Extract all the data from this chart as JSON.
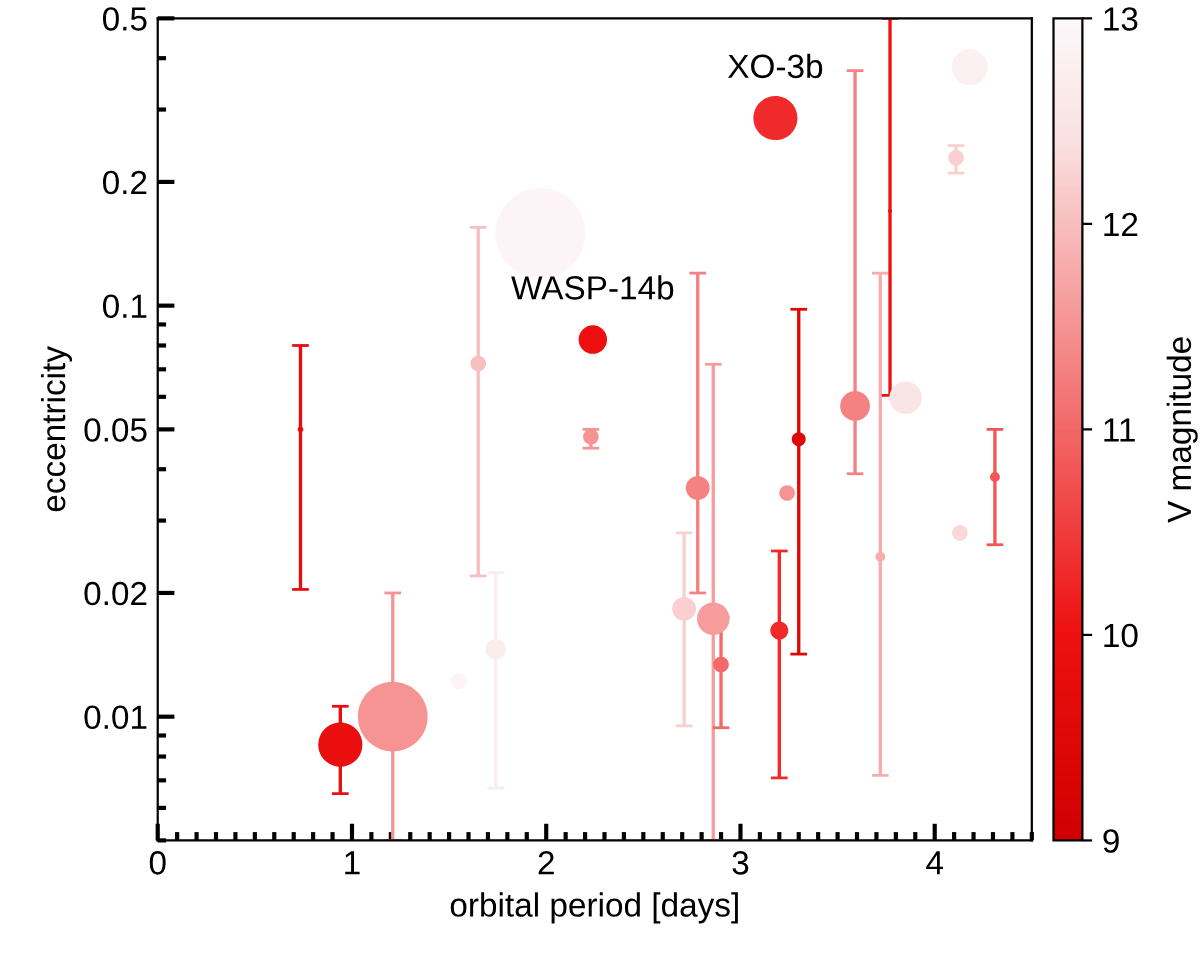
{
  "chart_data": {
    "type": "bubble",
    "xlabel": "orbital period [days]",
    "ylabel": "eccentricity",
    "clabel": "V magnitude",
    "xlim": [
      0,
      4.5
    ],
    "xticks": [
      0,
      1,
      2,
      3,
      4
    ],
    "ylim": [
      0.005,
      0.5
    ],
    "yticks": [
      0.01,
      0.02,
      0.05,
      0.1,
      0.2,
      0.5
    ],
    "log": "y",
    "clim": [
      9,
      13
    ],
    "cticks": [
      9,
      10,
      11,
      12,
      13
    ],
    "grid": false,
    "marker": "circle",
    "series": [
      {
        "x": [
          1.97,
          1.55,
          4.18,
          1.74,
          3.85,
          4.11,
          4.13,
          2.71,
          1.65,
          3.72,
          2.86,
          1.21,
          2.23,
          3.24,
          3.59,
          2.78,
          2.9,
          4.31,
          3.77,
          3.18,
          3.2,
          2.24,
          0.94,
          0.735,
          3.3
        ],
        "values": [
          0.15,
          0.0122,
          0.38,
          0.0146,
          0.0597,
          0.229,
          0.028,
          0.0183,
          0.0723,
          0.0245,
          0.0173,
          0.01,
          0.048,
          0.035,
          0.057,
          0.036,
          0.0134,
          0.0383,
          0.17,
          0.286,
          0.0162,
          0.0827,
          0.00855,
          0.05,
          0.0473
        ],
        "errors": [
          null,
          null,
          null,
          [
            0.0067,
            0.0224
          ],
          null,
          [
            0.21,
            0.245
          ],
          null,
          [
            0.0095,
            0.028
          ],
          [
            0.022,
            0.155
          ],
          [
            0.0072,
            0.12
          ],
          [
            0.005,
            0.072
          ],
          [
            0.005,
            0.02
          ],
          [
            0.045,
            0.05
          ],
          null,
          [
            0.039,
            0.373
          ],
          [
            0.02,
            0.12
          ],
          [
            0.0094,
            0.0175
          ],
          [
            0.0262,
            0.05
          ],
          [
            0.0605,
            0.5
          ],
          null,
          [
            0.0071,
            0.0253
          ],
          null,
          [
            0.0065,
            0.0106
          ],
          [
            0.0204,
            0.08
          ],
          [
            0.0142,
            0.098
          ]
        ],
        "sizes": [
          1,
          0.03,
          0.16,
          0.05,
          0.13,
          0.03,
          0.03,
          0.07,
          0.03,
          0.012,
          0.13,
          0.6,
          0.03,
          0.03,
          0.11,
          0.07,
          0.03,
          0.012,
          0.002,
          0.24,
          0.04,
          0.1,
          0.24,
          0.004,
          0.024
        ],
        "cvalues": [
          12.9,
          12.9,
          12.8,
          12.7,
          12.5,
          12.2,
          12.3,
          12.2,
          12.0,
          11.8,
          11.6,
          11.5,
          11.5,
          11.5,
          11.3,
          11.3,
          11.0,
          10.8,
          10.0,
          10.3,
          10.3,
          10.0,
          9.9,
          9.8,
          9.5
        ]
      }
    ],
    "annotations": [
      {
        "text": "WASP-14b",
        "x": 2.24,
        "y": 0.0827
      },
      {
        "text": "XO-3b",
        "x": 3.18,
        "y": 0.286
      }
    ]
  }
}
